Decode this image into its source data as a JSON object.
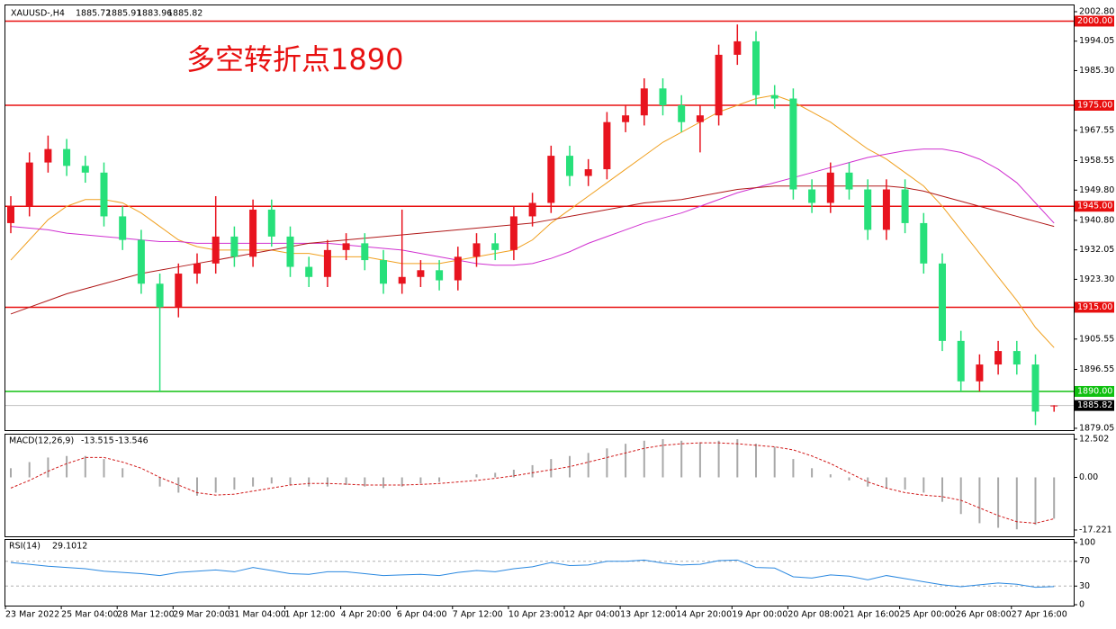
{
  "chart_data": {
    "type": "candlestick",
    "symbol": "XAUUSD-,H4",
    "annotation": "多空转折点1890",
    "up_color": "#e8141f",
    "down_color": "#27e07a",
    "ylim": [
      1878.5,
      2003.6
    ],
    "yticks": [
      {
        "value": 2002.8,
        "label": "2002.80"
      },
      {
        "value": 1994.05,
        "label": "1994.05"
      },
      {
        "value": 1985.3,
        "label": "1985.30"
      },
      {
        "value": 1967.55,
        "label": "1967.55"
      },
      {
        "value": 1958.55,
        "label": "1958.55"
      },
      {
        "value": 1949.8,
        "label": "1949.80"
      },
      {
        "value": 1940.8,
        "label": "1940.80"
      },
      {
        "value": 1932.05,
        "label": "1932.05"
      },
      {
        "value": 1923.3,
        "label": "1923.30"
      },
      {
        "value": 1905.55,
        "label": "1905.55"
      },
      {
        "value": 1896.55,
        "label": "1896.55"
      },
      {
        "value": 1879.05,
        "label": "1879.05"
      }
    ],
    "levels": [
      {
        "value": 2000,
        "label": "2000.00",
        "color": "#e81010"
      },
      {
        "value": 1975,
        "label": "1975.00",
        "color": "#e81010"
      },
      {
        "value": 1945,
        "label": "1945.00",
        "color": "#e81010"
      },
      {
        "value": 1915,
        "label": "1915.00",
        "color": "#e81010"
      },
      {
        "value": 1890,
        "label": "1890.00",
        "color": "#10c010"
      }
    ],
    "xlabels": [
      "23 Mar 2022",
      "25 Mar 04:00",
      "28 Mar 12:00",
      "29 Mar 20:00",
      "31 Mar 04:00",
      "1 Apr 12:00",
      "4 Apr 20:00",
      "6 Apr 04:00",
      "7 Apr 12:00",
      "10 Apr 23:00",
      "12 Apr 04:00",
      "13 Apr 12:00",
      "14 Apr 20:00",
      "19 Apr 00:00",
      "20 Apr 08:00",
      "21 Apr 16:00",
      "25 Apr 00:00",
      "26 Apr 08:00",
      "27 Apr 16:00"
    ],
    "candles": {
      "open": [
        1940,
        1945,
        1958,
        1962,
        1957,
        1955,
        1942,
        1935,
        1922,
        1915,
        1925,
        1928,
        1936,
        1930,
        1944,
        1936,
        1927,
        1924,
        1932,
        1934,
        1929,
        1922,
        1924,
        1926,
        1923,
        1930,
        1934,
        1932,
        1942,
        1946,
        1960,
        1954,
        1956,
        1970,
        1972,
        1980,
        1975,
        1970,
        1972,
        1990,
        1994,
        1978,
        1977,
        1950,
        1946,
        1955,
        1950,
        1938,
        1950,
        1940,
        1928,
        1905,
        1893,
        1898,
        1902,
        1898,
        1885.72
      ],
      "high": [
        1948,
        1961,
        1966,
        1965,
        1960,
        1958,
        1945,
        1938,
        1925,
        1928,
        1931,
        1948,
        1939,
        1947,
        1947,
        1939,
        1930,
        1935,
        1937,
        1937,
        1932,
        1944,
        1929,
        1929,
        1933,
        1937,
        1937,
        1945,
        1949,
        1963,
        1963,
        1959,
        1973,
        1975,
        1983,
        1983,
        1978,
        1975,
        1993,
        1999,
        1997,
        1981,
        1980,
        1953,
        1958,
        1958,
        1953,
        1953,
        1953,
        1943,
        1931,
        1908,
        1901,
        1905,
        1905,
        1901,
        1885.91
      ],
      "low": [
        1937,
        1942,
        1955,
        1954,
        1952,
        1939,
        1932,
        1919,
        1890,
        1912,
        1922,
        1925,
        1927,
        1927,
        1933,
        1924,
        1921,
        1921,
        1929,
        1926,
        1919,
        1919,
        1921,
        1920,
        1920,
        1927,
        1929,
        1929,
        1939,
        1943,
        1951,
        1951,
        1953,
        1967,
        1969,
        1972,
        1967,
        1961,
        1969,
        1987,
        1975,
        1974,
        1947,
        1943,
        1943,
        1947,
        1935,
        1935,
        1937,
        1925,
        1902,
        1890,
        1890,
        1895,
        1895,
        1880,
        1883.96
      ],
      "close": [
        1945,
        1958,
        1962,
        1957,
        1955,
        1942,
        1935,
        1922,
        1915,
        1925,
        1928,
        1936,
        1930,
        1944,
        1936,
        1927,
        1924,
        1932,
        1934,
        1929,
        1922,
        1924,
        1926,
        1923,
        1930,
        1934,
        1932,
        1942,
        1946,
        1960,
        1954,
        1956,
        1970,
        1972,
        1980,
        1975,
        1970,
        1972,
        1990,
        1994,
        1978,
        1977,
        1950,
        1946,
        1955,
        1950,
        1938,
        1950,
        1940,
        1928,
        1905,
        1893,
        1898,
        1902,
        1898,
        1884,
        1885.82
      ]
    },
    "ma": [
      {
        "color": "#f0a020",
        "values": [
          1929,
          1935,
          1941,
          1945,
          1947,
          1947,
          1946,
          1943,
          1939,
          1935,
          1933,
          1932,
          1932,
          1932,
          1932,
          1931,
          1931,
          1930,
          1930,
          1930,
          1929,
          1928,
          1928,
          1928,
          1929,
          1930,
          1931,
          1932,
          1935,
          1940,
          1944,
          1948,
          1952,
          1956,
          1960,
          1964,
          1967,
          1970,
          1973,
          1975,
          1977,
          1978,
          1976,
          1973,
          1970,
          1966,
          1962,
          1959,
          1955,
          1951,
          1945,
          1938,
          1931,
          1924,
          1917,
          1909,
          1903
        ]
      },
      {
        "color": "#d030d0",
        "values": [
          1939,
          1938.5,
          1938,
          1937,
          1936.5,
          1936,
          1935.5,
          1935,
          1934.5,
          1934.5,
          1934,
          1934,
          1934,
          1934,
          1934,
          1934,
          1934,
          1934,
          1933.5,
          1933,
          1932.5,
          1932,
          1931,
          1930,
          1929,
          1928,
          1927.5,
          1927.5,
          1928,
          1929.5,
          1931.5,
          1934,
          1936,
          1938,
          1940,
          1941.5,
          1943,
          1945,
          1947,
          1949,
          1950.5,
          1952,
          1953.5,
          1955,
          1956.5,
          1958,
          1959.5,
          1960.5,
          1961.5,
          1962,
          1962,
          1961,
          1959,
          1956,
          1952,
          1946,
          1940
        ]
      },
      {
        "color": "#b01818",
        "values": [
          1913,
          1915,
          1917,
          1919,
          1920.5,
          1922,
          1923.5,
          1925,
          1926,
          1927,
          1928,
          1929,
          1930,
          1931,
          1932,
          1933,
          1934,
          1934.5,
          1935,
          1935.5,
          1936,
          1936.5,
          1937,
          1937.5,
          1938,
          1938.5,
          1939,
          1939.5,
          1940,
          1941,
          1942,
          1943,
          1944,
          1945,
          1946,
          1946.5,
          1947,
          1948,
          1949,
          1950,
          1950.5,
          1951,
          1951,
          1951,
          1951,
          1951,
          1951,
          1951,
          1950.5,
          1949.5,
          1948,
          1946.5,
          1945,
          1943.5,
          1942,
          1940.5,
          1939
        ]
      }
    ],
    "macd": {
      "title": "MACD(12,26,9)",
      "ylim": [
        -18.7,
        13.4
      ],
      "yticks": [
        12.502,
        {
          "value": 0,
          "label": "0.00"
        },
        -17.221
      ],
      "hist_color": "#a8a8a8",
      "signal_color": "#d01818",
      "hist": [
        3,
        5,
        6.5,
        7,
        7,
        6,
        3,
        0,
        -3,
        -5,
        -6,
        -5,
        -4,
        -3,
        -2,
        -2.5,
        -3,
        -3,
        -2.5,
        -3,
        -3.5,
        -3,
        -2,
        -1.5,
        0,
        1,
        1.5,
        2.5,
        4,
        6,
        7,
        8,
        9.5,
        11,
        12,
        12.5,
        12,
        11.5,
        12,
        12.5,
        11,
        10,
        6,
        3,
        1,
        -1,
        -3,
        -3.5,
        -4,
        -5,
        -8,
        -12,
        -15,
        -16.5,
        -17,
        -15.5,
        -13.515
      ],
      "signal": [
        -3.5,
        -1,
        2,
        4.5,
        6.5,
        6.5,
        5,
        3,
        0,
        -2.5,
        -5,
        -5.8,
        -5.5,
        -4.5,
        -3.5,
        -2.5,
        -2,
        -2,
        -2.2,
        -2.5,
        -2.5,
        -2.5,
        -2.3,
        -2,
        -1.5,
        -1,
        -0.3,
        0.5,
        1.5,
        2.5,
        3.5,
        5,
        6.5,
        8,
        9.5,
        10.5,
        11,
        11.3,
        11.3,
        11,
        10.5,
        10,
        9,
        7,
        4.5,
        1.5,
        -1.5,
        -3.5,
        -5,
        -5.8,
        -6.3,
        -7.5,
        -10,
        -12.5,
        -14.5,
        -15,
        -13.546
      ]
    },
    "rsi": {
      "title": "RSI(14)",
      "ylim": [
        0,
        100
      ],
      "yticks": [
        100,
        70,
        30,
        0
      ],
      "color": "#2a88e0",
      "values": [
        68,
        65,
        62,
        60,
        58,
        54,
        52,
        50,
        47,
        52,
        54,
        56,
        53,
        60,
        55,
        50,
        49,
        53,
        53,
        50,
        47,
        48,
        49,
        47,
        52,
        55,
        53,
        58,
        61,
        68,
        63,
        64,
        70,
        70,
        72,
        67,
        64,
        65,
        71,
        72,
        60,
        59,
        45,
        43,
        48,
        46,
        40,
        47,
        42,
        37,
        32,
        29,
        32,
        35,
        33,
        28,
        29.1012
      ]
    }
  }
}
